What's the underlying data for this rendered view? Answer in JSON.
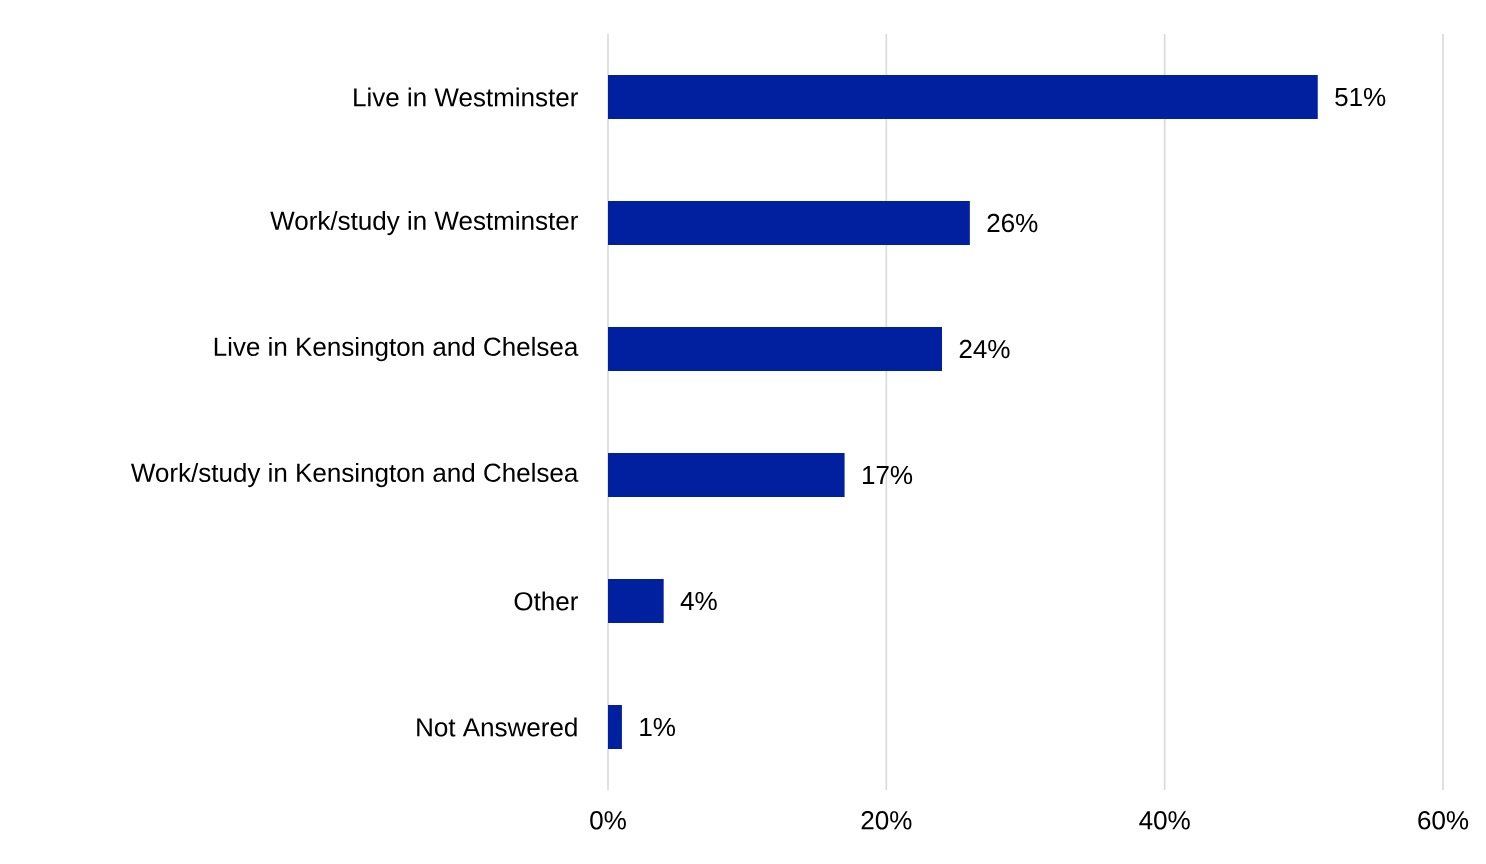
{
  "chart_data": {
    "type": "bar",
    "orientation": "horizontal",
    "categories": [
      "Live in Westminster",
      "Work/study in Westminster",
      "Live in Kensington and Chelsea",
      "Work/study in Kensington and Chelsea",
      "Other",
      "Not Answered"
    ],
    "values": [
      51,
      26,
      24,
      17,
      4,
      1
    ],
    "value_labels": [
      "51%",
      "26%",
      "24%",
      "17%",
      "4%",
      "1%"
    ],
    "color": "#00209f",
    "xlim": [
      0,
      60
    ],
    "xticks": [
      {
        "value": 0,
        "label": "0%"
      },
      {
        "value": 20,
        "label": "20%"
      },
      {
        "value": 40,
        "label": "40%"
      },
      {
        "value": 60,
        "label": "60%"
      }
    ],
    "grid": "x"
  }
}
